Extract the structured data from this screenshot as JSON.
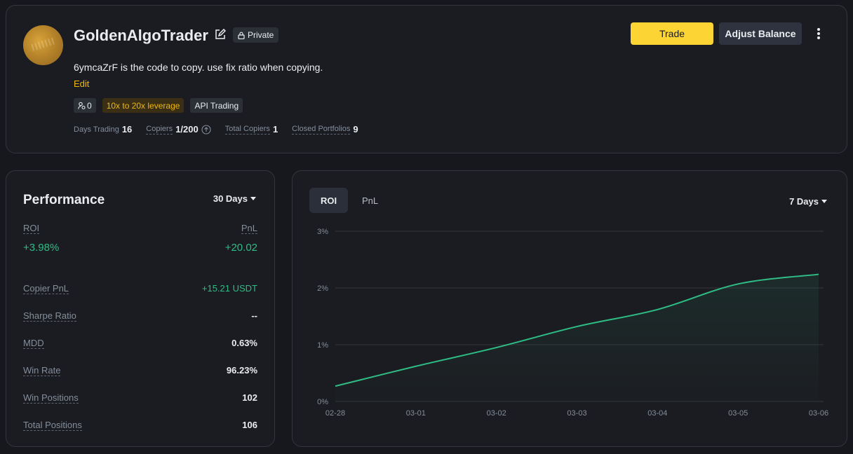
{
  "profile": {
    "name": "GoldenAlgoTrader",
    "private_label": "Private",
    "description": "6ymcaZrF is the code to copy. use fix ratio when copying.",
    "edit_label": "Edit",
    "tags": {
      "copiers_count": "0",
      "leverage": "10x to 20x leverage",
      "api": "API Trading"
    },
    "stats": {
      "days_trading_label": "Days Trading",
      "days_trading_value": "16",
      "copiers_label": "Copiers",
      "copiers_value": "1/200",
      "total_copiers_label": "Total Copiers",
      "total_copiers_value": "1",
      "closed_portfolios_label": "Closed Portfolios",
      "closed_portfolios_value": "9"
    },
    "buttons": {
      "trade": "Trade",
      "adjust_balance": "Adjust Balance"
    }
  },
  "performance": {
    "title": "Performance",
    "period": "30 Days",
    "roi_label": "ROI",
    "roi_value": "+3.98%",
    "pnl_label": "PnL",
    "pnl_value": "+20.02",
    "metrics": [
      {
        "label": "Copier PnL",
        "value": "+15.21 USDT"
      },
      {
        "label": "Sharpe Ratio",
        "value": "--"
      },
      {
        "label": "MDD",
        "value": "0.63%"
      },
      {
        "label": "Win Rate",
        "value": "96.23%"
      },
      {
        "label": "Win Positions",
        "value": "102"
      },
      {
        "label": "Total Positions",
        "value": "106"
      }
    ]
  },
  "chart_panel": {
    "tabs": [
      "ROI",
      "PnL"
    ],
    "active_tab": "ROI",
    "range": "7 Days"
  },
  "colors": {
    "accent": "#fcd535",
    "positive": "#2ebd85",
    "link": "#f0b90b"
  },
  "chart_data": {
    "type": "line",
    "x": [
      "02-28",
      "03-01",
      "03-02",
      "03-03",
      "03-04",
      "03-05",
      "03-06"
    ],
    "series": [
      {
        "values": [
          0.27,
          0.62,
          0.95,
          1.32,
          1.62,
          2.07,
          2.24
        ]
      }
    ],
    "yticks": [
      "3%",
      "2%",
      "1%",
      "0%"
    ],
    "ylim": [
      0,
      3
    ],
    "grid": true
  }
}
